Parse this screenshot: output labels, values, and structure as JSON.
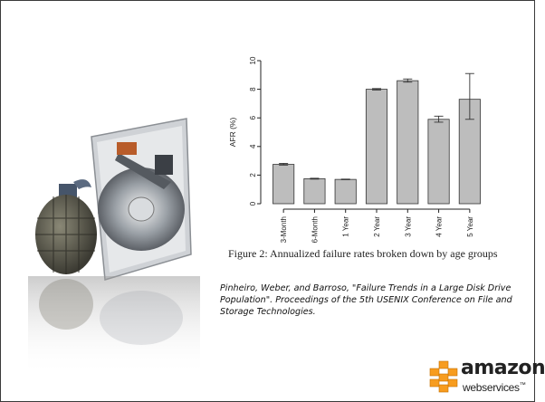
{
  "chart_data": {
    "type": "bar",
    "categories": [
      "3-Month",
      "6-Month",
      "1 Year",
      "2 Year",
      "3 Year",
      "4 Year",
      "5 Year"
    ],
    "values": [
      2.75,
      1.75,
      1.7,
      8.0,
      8.6,
      5.9,
      7.3
    ],
    "error_low": [
      2.7,
      1.72,
      1.68,
      7.95,
      8.5,
      5.7,
      5.9
    ],
    "error_high": [
      2.82,
      1.78,
      1.72,
      8.05,
      8.72,
      6.12,
      9.1
    ],
    "ylabel": "AFR (%)",
    "yticks": [
      0,
      2,
      4,
      6,
      8,
      10
    ],
    "ylim": [
      0,
      10
    ],
    "bar_color": "#bdbdbd",
    "grid": false
  },
  "caption": "Figure 2:  Annualized failure rates broken down by age groups",
  "citation": "Pinheiro, Weber, and Barroso, \"Failure Trends in a Large Disk Drive Population\". Proceedings of the 5th USENIX Conference on File and Storage Technologies.",
  "logo": {
    "word": "amazon",
    "sub": "webservices",
    "tm": "™",
    "color": "#f79c1e"
  }
}
